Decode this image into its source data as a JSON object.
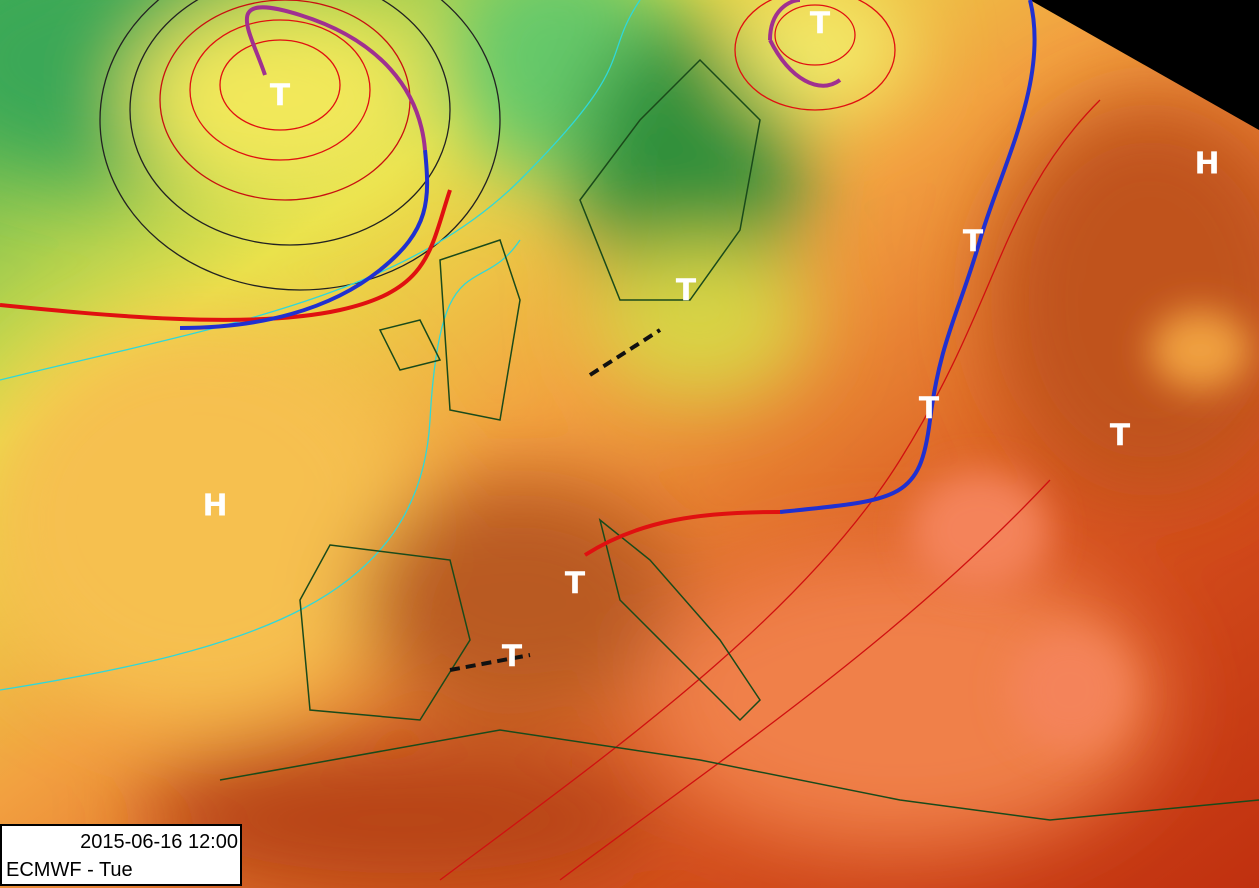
{
  "pressure_centers": [
    {
      "label": "T"
    },
    {
      "label": "T"
    },
    {
      "label": "H"
    },
    {
      "label": "T"
    },
    {
      "label": "T"
    },
    {
      "label": "T"
    },
    {
      "label": "T"
    },
    {
      "label": "H"
    },
    {
      "label": "T"
    },
    {
      "label": "T"
    }
  ],
  "info_box": {
    "datetime": "2015-06-16 12:00",
    "model_day": "ECMWF - Tue"
  }
}
